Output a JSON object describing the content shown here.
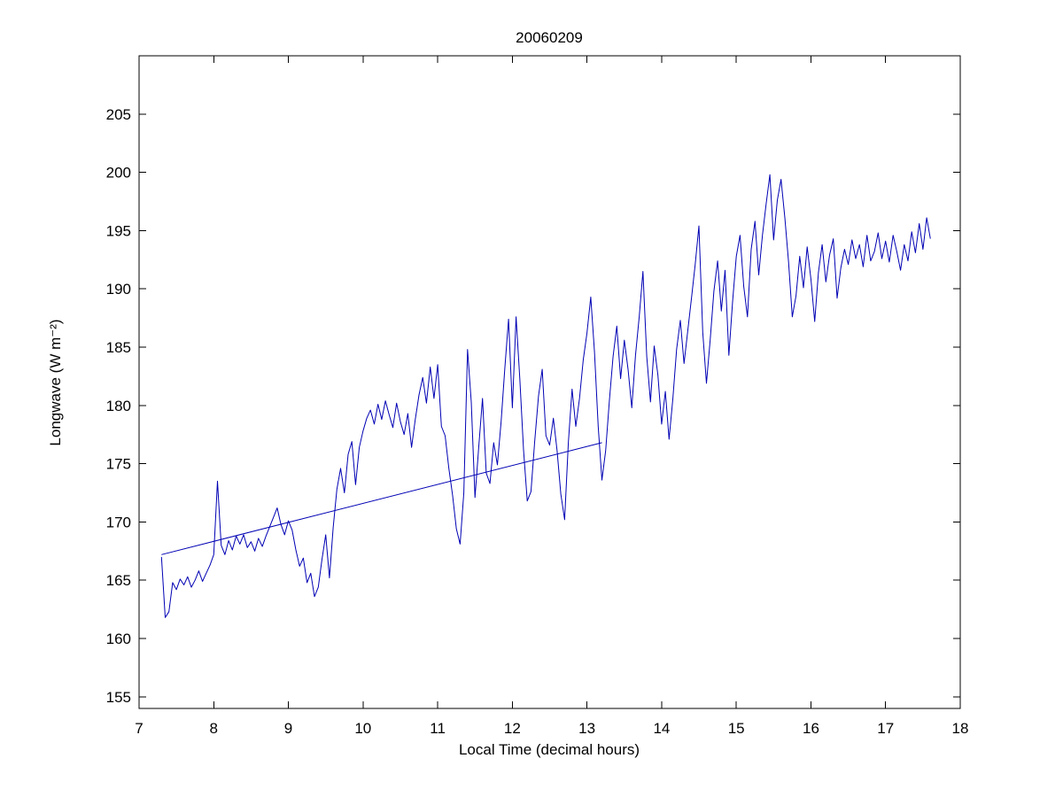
{
  "figure": {
    "background": "#ffffff"
  },
  "chart_data": {
    "type": "line",
    "title": "20060209",
    "xlabel": "Local Time (decimal hours)",
    "ylabel": "Longwave (W m⁻²)",
    "xlim": [
      7,
      18
    ],
    "ylim": [
      154,
      210
    ],
    "xticks": [
      7,
      8,
      9,
      10,
      11,
      12,
      13,
      14,
      15,
      16,
      17,
      18
    ],
    "yticks": [
      155,
      160,
      165,
      170,
      175,
      180,
      185,
      190,
      195,
      200,
      205
    ],
    "grid": false,
    "legend": "none",
    "axis_color": "#000000",
    "line_color": "#0000b4",
    "series": [
      {
        "name": "longwave-timeseries",
        "color": "#0000b4",
        "x_start": 7.3,
        "x_step": 0.05,
        "y": [
          167.0,
          161.8,
          162.3,
          164.8,
          164.2,
          165.1,
          164.6,
          165.3,
          164.4,
          165.0,
          165.8,
          164.9,
          165.6,
          166.3,
          167.2,
          173.5,
          168.0,
          167.2,
          168.4,
          167.6,
          168.8,
          168.1,
          168.9,
          167.8,
          168.3,
          167.5,
          168.6,
          167.9,
          168.8,
          169.6,
          170.4,
          171.2,
          169.8,
          168.9,
          170.1,
          169.3,
          167.6,
          166.2,
          166.9,
          164.8,
          165.6,
          163.6,
          164.4,
          166.8,
          168.9,
          165.2,
          169.5,
          172.8,
          174.6,
          172.5,
          175.8,
          176.9,
          173.2,
          176.4,
          177.8,
          178.9,
          179.6,
          178.4,
          180.1,
          178.8,
          180.4,
          179.2,
          178.1,
          180.2,
          178.6,
          177.5,
          179.3,
          176.4,
          178.8,
          180.9,
          182.4,
          180.2,
          183.3,
          180.6,
          183.5,
          178.2,
          177.4,
          174.6,
          172.3,
          169.4,
          168.1,
          172.5,
          184.8,
          180.3,
          172.1,
          176.4,
          180.6,
          174.2,
          173.3,
          176.8,
          174.9,
          178.6,
          183.2,
          187.4,
          179.8,
          187.6,
          182.3,
          176.2,
          171.8,
          172.6,
          176.9,
          180.8,
          183.1,
          177.4,
          176.6,
          178.9,
          176.1,
          172.4,
          170.2,
          176.8,
          181.4,
          178.2,
          180.6,
          183.9,
          186.2,
          189.3,
          184.6,
          178.2,
          173.6,
          176.1,
          180.4,
          184.2,
          186.8,
          182.3,
          185.6,
          183.1,
          179.8,
          184.3,
          187.6,
          191.5,
          184.2,
          180.3,
          185.1,
          182.6,
          178.4,
          181.2,
          177.1,
          180.6,
          184.8,
          187.3,
          183.6,
          186.4,
          189.2,
          192.1,
          195.4,
          186.3,
          181.9,
          185.6,
          189.8,
          192.4,
          188.1,
          191.6,
          184.3,
          188.9,
          192.8,
          194.6,
          190.2,
          187.6,
          193.4,
          195.8,
          191.2,
          194.6,
          197.3,
          199.8,
          194.2,
          197.6,
          199.4,
          196.1,
          192.3,
          187.6,
          189.4,
          192.8,
          190.1,
          193.6,
          190.8,
          187.2,
          191.4,
          193.8,
          190.6,
          192.9,
          194.3,
          189.2,
          191.8,
          193.4,
          192.1,
          194.2,
          192.6,
          193.8,
          191.9,
          194.6,
          192.4,
          193.2,
          194.8,
          192.6,
          194.1,
          192.3,
          194.6,
          193.2,
          191.6,
          193.8,
          192.4,
          194.9,
          193.1,
          195.6,
          193.4,
          196.1,
          194.3
        ]
      },
      {
        "name": "linear-fit-line",
        "color": "#0000b4",
        "x": [
          7.3,
          13.2
        ],
        "y": [
          167.2,
          176.8
        ]
      }
    ]
  }
}
